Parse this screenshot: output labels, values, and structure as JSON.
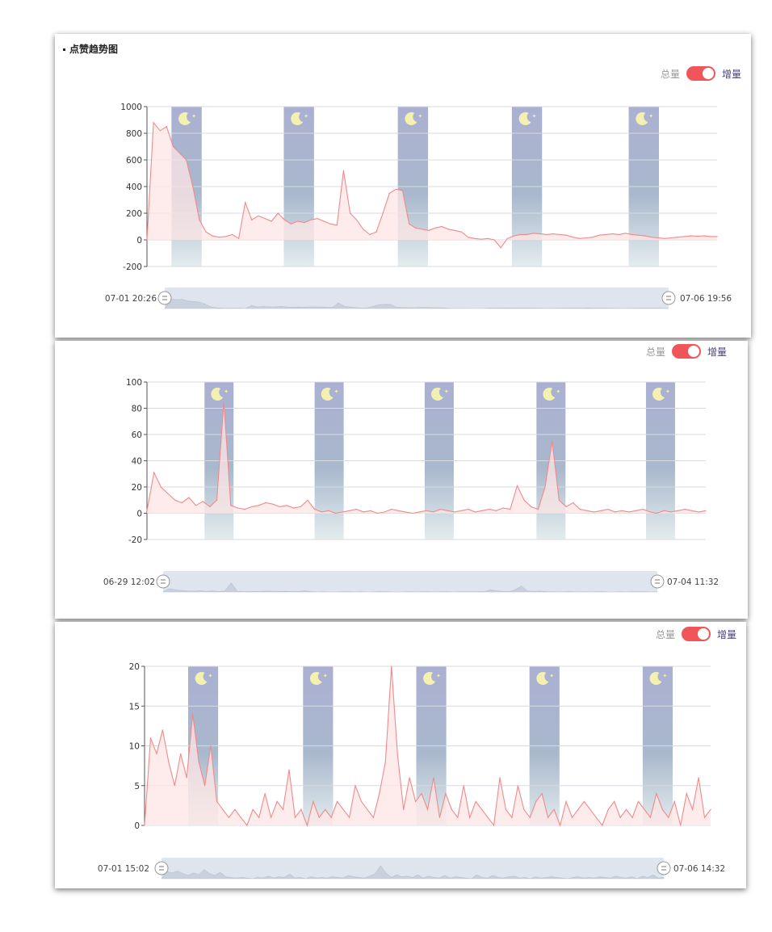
{
  "section": {
    "title": "点赞趋势图"
  },
  "toggle": {
    "total_label": "总量",
    "increment_label": "增量"
  },
  "colors": {
    "line": "#f08a8a",
    "area": "#fde6e6",
    "night_top": "#aab0d2",
    "night_bottom": "#e3ecee",
    "moon": "#f4f0b0",
    "switch_on": "#f0555a",
    "slider_track": "#dfe5ef"
  },
  "icons": {
    "night": "moon-icon",
    "handle": "slider-handle-icon"
  },
  "chart_data": [
    {
      "type": "area",
      "title": "",
      "ylim": [
        -200,
        1000
      ],
      "yticks": [
        "-200",
        "0",
        "200",
        "400",
        "600",
        "800",
        "1000"
      ],
      "range_start_label": "07-01 20:26",
      "range_end_label": "07-06 19:56",
      "night_periods": [
        [
          0.043,
          0.096
        ],
        [
          0.24,
          0.293
        ],
        [
          0.44,
          0.493
        ],
        [
          0.64,
          0.693
        ],
        [
          0.845,
          0.898
        ]
      ],
      "series": [
        {
          "values": [
            0,
            880,
            820,
            850,
            700,
            650,
            600,
            400,
            150,
            60,
            30,
            20,
            25,
            40,
            10,
            280,
            150,
            180,
            160,
            140,
            200,
            150,
            120,
            140,
            130,
            150,
            160,
            140,
            120,
            110,
            520,
            200,
            150,
            80,
            40,
            60,
            200,
            350,
            380,
            370,
            120,
            90,
            80,
            70,
            90,
            100,
            80,
            70,
            60,
            20,
            10,
            5,
            10,
            0,
            -60,
            10,
            30,
            40,
            40,
            50,
            45,
            40,
            45,
            40,
            35,
            20,
            10,
            15,
            20,
            35,
            40,
            45,
            40,
            50,
            40,
            35,
            30,
            20,
            15,
            10,
            15,
            20,
            25,
            30,
            28,
            30,
            25,
            25
          ]
        }
      ]
    },
    {
      "type": "area",
      "title": "",
      "ylim": [
        -20,
        100
      ],
      "yticks": [
        "-20",
        "0",
        "20",
        "40",
        "60",
        "80",
        "100"
      ],
      "range_start_label": "06-29 12:02",
      "range_end_label": "07-04 11:32",
      "night_periods": [
        [
          0.103,
          0.155
        ],
        [
          0.3,
          0.352
        ],
        [
          0.497,
          0.549
        ],
        [
          0.697,
          0.749
        ],
        [
          0.893,
          0.945
        ]
      ],
      "series": [
        {
          "values": [
            2,
            31,
            20,
            15,
            10,
            8,
            12,
            6,
            9,
            5,
            10,
            85,
            6,
            4,
            3,
            5,
            6,
            8,
            7,
            5,
            6,
            4,
            5,
            10,
            3,
            1,
            2,
            0,
            1,
            2,
            3,
            1,
            2,
            0,
            1,
            3,
            2,
            1,
            0,
            1,
            2,
            1,
            3,
            2,
            1,
            2,
            3,
            1,
            2,
            3,
            2,
            4,
            3,
            21,
            10,
            5,
            3,
            20,
            55,
            10,
            5,
            8,
            3,
            2,
            1,
            2,
            3,
            1,
            2,
            1,
            2,
            3,
            1,
            0,
            2,
            1,
            2,
            3,
            2,
            1,
            2
          ]
        }
      ]
    },
    {
      "type": "area",
      "title": "",
      "ylim": [
        0,
        20
      ],
      "yticks": [
        "0",
        "5",
        "10",
        "15",
        "20"
      ],
      "range_start_label": "07-01 15:02",
      "range_end_label": "07-06 14:32",
      "night_periods": [
        [
          0.077,
          0.13
        ],
        [
          0.28,
          0.333
        ],
        [
          0.48,
          0.533
        ],
        [
          0.68,
          0.733
        ],
        [
          0.88,
          0.933
        ]
      ],
      "series": [
        {
          "values": [
            0,
            11,
            9,
            12,
            8,
            5,
            9,
            6,
            14,
            8,
            5,
            10,
            3,
            2,
            1,
            2,
            1,
            0,
            2,
            1,
            4,
            1,
            3,
            2,
            7,
            1,
            2,
            0,
            3,
            1,
            2,
            1,
            3,
            2,
            1,
            5,
            3,
            2,
            1,
            4,
            8,
            20,
            9,
            2,
            6,
            3,
            4,
            2,
            6,
            1,
            4,
            2,
            1,
            5,
            1,
            3,
            2,
            1,
            0,
            6,
            2,
            1,
            5,
            2,
            1,
            3,
            4,
            1,
            2,
            0,
            3,
            1,
            2,
            3,
            2,
            1,
            0,
            2,
            3,
            1,
            2,
            1,
            3,
            2,
            1,
            4,
            2,
            1,
            3,
            0,
            4,
            2,
            6,
            1,
            2
          ]
        }
      ]
    }
  ]
}
